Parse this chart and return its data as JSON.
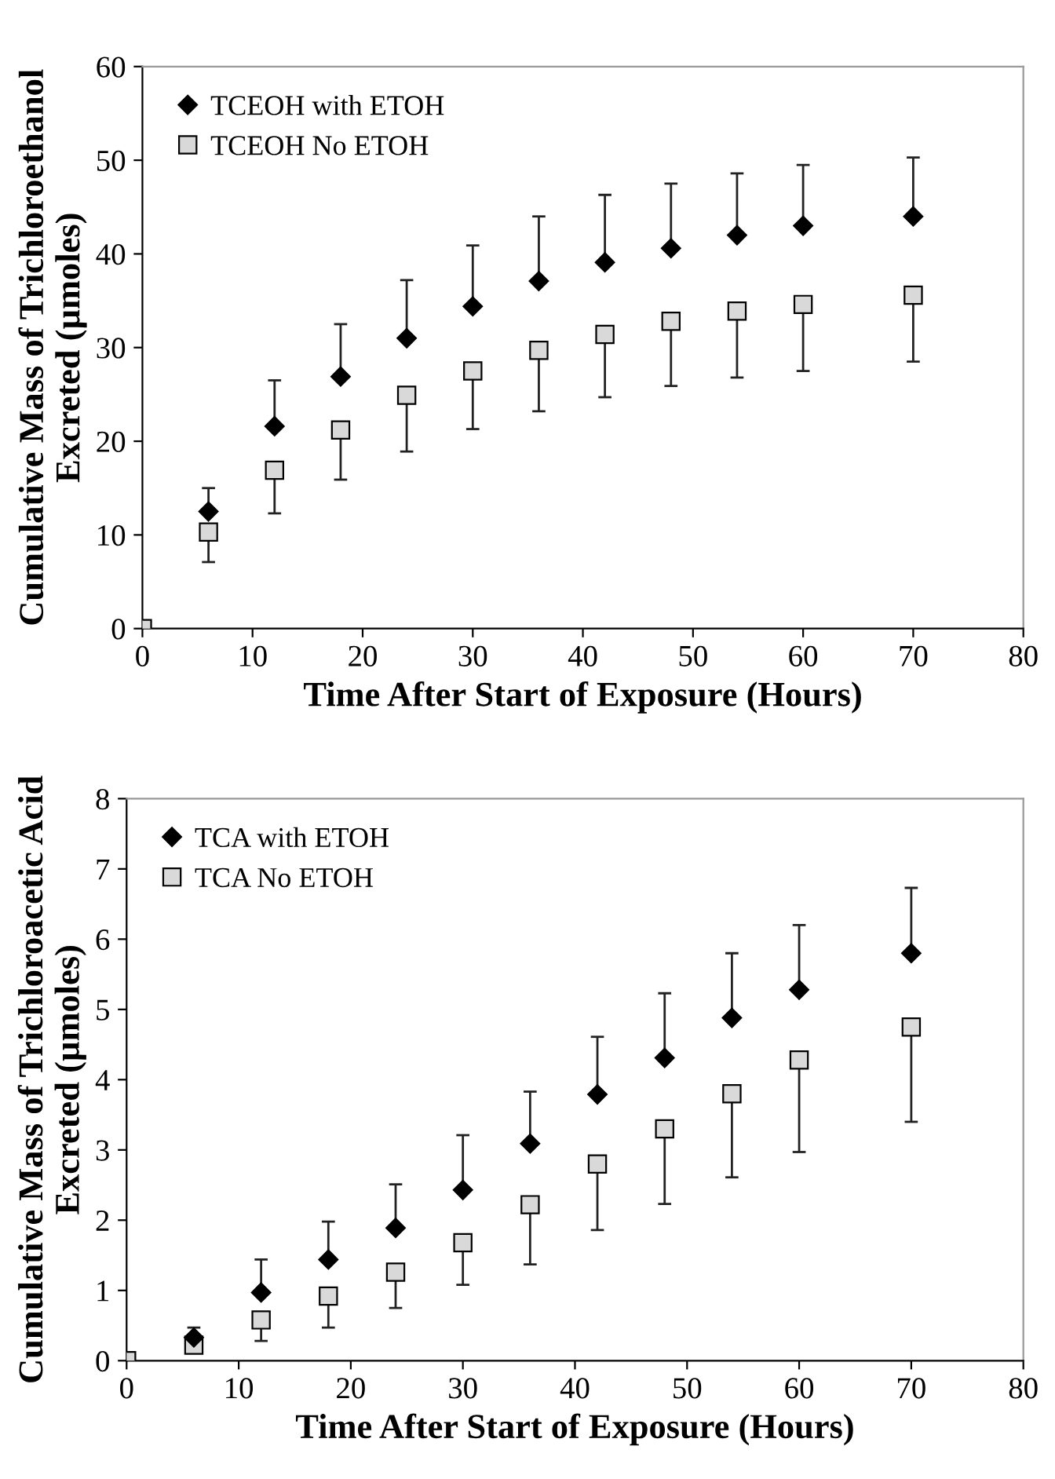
{
  "chart_data": [
    {
      "type": "scatter",
      "xlabel": "Time After Start of Exposure (Hours)",
      "ylabel": "Cumulative Mass of Trichloroethanol\nExcreted (µmoles)",
      "xlim": [
        0,
        80
      ],
      "xticks": [
        0,
        10,
        20,
        30,
        40,
        50,
        60,
        70,
        80
      ],
      "ylim": [
        0,
        60
      ],
      "yticks": [
        0,
        10,
        20,
        30,
        40,
        50,
        60
      ],
      "grid": false,
      "legend": "top left",
      "series": [
        {
          "name": "TCEOH with ETOH",
          "color": "#000000",
          "marker": "diamond",
          "x": [
            6,
            12,
            18,
            24,
            30,
            36,
            42,
            48,
            54,
            60,
            70
          ],
          "values": [
            12.5,
            21.6,
            26.9,
            31,
            34.4,
            37.1,
            39.1,
            40.6,
            42,
            43,
            44
          ],
          "errors": [
            [
              12.5,
              15
            ],
            [
              21.6,
              26.5
            ],
            [
              26.9,
              32.5
            ],
            [
              31,
              37.2
            ],
            [
              34.4,
              40.9
            ],
            [
              37.1,
              44
            ],
            [
              39.1,
              46.3
            ],
            [
              40.6,
              47.5
            ],
            [
              42,
              48.6
            ],
            [
              43,
              49.5
            ],
            [
              44,
              50.3
            ]
          ]
        },
        {
          "name": "TCEOH No ETOH",
          "color": "#d9d9d9",
          "marker": "square",
          "x": [
            0,
            6,
            12,
            18,
            24,
            30,
            36,
            42,
            48,
            54,
            60,
            70
          ],
          "values": [
            0,
            10.3,
            16.9,
            21.2,
            24.9,
            27.5,
            29.7,
            31.4,
            32.8,
            33.9,
            34.6,
            35.6
          ],
          "errors": [
            null,
            [
              7.1,
              10.3
            ],
            [
              12.3,
              16.9
            ],
            [
              15.9,
              21.2
            ],
            [
              18.9,
              24.9
            ],
            [
              21.3,
              27.5
            ],
            [
              23.2,
              29.7
            ],
            [
              24.7,
              31.4
            ],
            [
              25.9,
              32.8
            ],
            [
              26.8,
              33.9
            ],
            [
              27.5,
              34.6
            ],
            [
              28.5,
              35.6
            ]
          ]
        }
      ]
    },
    {
      "type": "scatter",
      "xlabel": "Time After Start of Exposure (Hours)",
      "ylabel": "Cumulative Mass of Trichloroacetic Acid\nExcreted (µmoles)",
      "xlim": [
        0,
        80
      ],
      "xticks": [
        0,
        10,
        20,
        30,
        40,
        50,
        60,
        70,
        80
      ],
      "ylim": [
        0,
        8
      ],
      "yticks": [
        0,
        1,
        2,
        3,
        4,
        5,
        6,
        7,
        8
      ],
      "grid": false,
      "legend": "top left",
      "series": [
        {
          "name": "TCA with ETOH",
          "color": "#000000",
          "marker": "diamond",
          "x": [
            6,
            12,
            18,
            24,
            30,
            36,
            42,
            48,
            54,
            60,
            70
          ],
          "values": [
            0.33,
            0.97,
            1.44,
            1.89,
            2.43,
            3.09,
            3.79,
            4.31,
            4.88,
            5.28,
            5.8
          ],
          "errors": [
            [
              0.33,
              0.47
            ],
            [
              0.97,
              1.44
            ],
            [
              1.44,
              1.98
            ],
            [
              1.89,
              2.51
            ],
            [
              2.43,
              3.21
            ],
            [
              3.09,
              3.83
            ],
            [
              3.79,
              4.61
            ],
            [
              4.31,
              5.23
            ],
            [
              4.88,
              5.8
            ],
            [
              5.28,
              6.2
            ],
            [
              5.8,
              6.73
            ]
          ]
        },
        {
          "name": "TCA No ETOH",
          "color": "#d9d9d9",
          "marker": "square",
          "x": [
            0,
            6,
            12,
            18,
            24,
            30,
            36,
            42,
            48,
            54,
            60,
            70
          ],
          "values": [
            0,
            0.22,
            0.58,
            0.92,
            1.26,
            1.68,
            2.22,
            2.8,
            3.3,
            3.8,
            4.28,
            4.75
          ],
          "errors": [
            null,
            [
              0.13,
              0.22
            ],
            [
              0.28,
              0.58
            ],
            [
              0.47,
              0.92
            ],
            [
              0.75,
              1.26
            ],
            [
              1.08,
              1.68
            ],
            [
              1.37,
              2.22
            ],
            [
              1.86,
              2.8
            ],
            [
              2.23,
              3.3
            ],
            [
              2.61,
              3.8
            ],
            [
              2.97,
              4.28
            ],
            [
              3.4,
              4.75
            ]
          ]
        }
      ]
    }
  ]
}
